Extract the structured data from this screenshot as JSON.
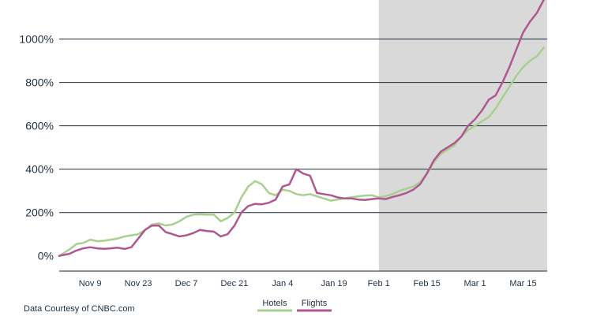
{
  "chart_data": {
    "type": "line",
    "source_note": "Data Courtesy of CNBC.com",
    "y_ticks": [
      "0%",
      "200%",
      "400%",
      "600%",
      "800%",
      "1000%"
    ],
    "y_tick_values": [
      0,
      200,
      400,
      600,
      800,
      1000
    ],
    "ylim": [
      -70,
      1180
    ],
    "x_tick_labels": [
      "Nov 9",
      "Nov 23",
      "Dec 7",
      "Dec 21",
      "Jan 4",
      "Jan 19",
      "Feb 1",
      "Feb 15",
      "Mar 1",
      "Mar 15"
    ],
    "x_tick_values": [
      9,
      23,
      37,
      51,
      65,
      80,
      93,
      107,
      121,
      135
    ],
    "xlim": [
      0,
      142
    ],
    "shaded_region": [
      93,
      142
    ],
    "grid": "horizontal",
    "legend_position": "bottom-center",
    "colors": {
      "Hotels": "#a9cf8f",
      "Flights": "#b0578e",
      "shade": "#d9d9d9"
    },
    "series": [
      {
        "name": "Hotels",
        "x": [
          0,
          3,
          5,
          7,
          9,
          11,
          13,
          15,
          17,
          19,
          21,
          23,
          25,
          27,
          29,
          31,
          33,
          35,
          37,
          39,
          41,
          43,
          45,
          47,
          49,
          51,
          53,
          55,
          57,
          59,
          61,
          63,
          65,
          67,
          69,
          71,
          73,
          75,
          77,
          79,
          81,
          83,
          85,
          87,
          89,
          91,
          93,
          95,
          97,
          99,
          101,
          103,
          105,
          107,
          109,
          111,
          113,
          115,
          117,
          119,
          121,
          123,
          125,
          127,
          129,
          131,
          133,
          135,
          137,
          139,
          141
        ],
        "y": [
          0,
          30,
          55,
          60,
          75,
          68,
          70,
          75,
          80,
          90,
          95,
          100,
          120,
          145,
          150,
          140,
          145,
          160,
          180,
          190,
          192,
          190,
          190,
          160,
          175,
          200,
          270,
          320,
          345,
          330,
          290,
          280,
          305,
          300,
          285,
          280,
          285,
          275,
          265,
          255,
          260,
          265,
          270,
          275,
          278,
          280,
          270,
          275,
          285,
          300,
          310,
          320,
          340,
          380,
          430,
          470,
          490,
          510,
          550,
          580,
          600,
          620,
          640,
          680,
          730,
          780,
          830,
          870,
          900,
          920,
          960
        ]
      },
      {
        "name": "Flights",
        "x": [
          0,
          3,
          5,
          7,
          9,
          11,
          13,
          15,
          17,
          19,
          21,
          23,
          25,
          27,
          29,
          31,
          33,
          35,
          37,
          39,
          41,
          43,
          45,
          47,
          49,
          51,
          53,
          55,
          57,
          59,
          61,
          63,
          65,
          67,
          69,
          71,
          73,
          75,
          77,
          79,
          81,
          83,
          85,
          87,
          89,
          91,
          93,
          95,
          97,
          99,
          101,
          103,
          105,
          107,
          109,
          111,
          113,
          115,
          117,
          119,
          121,
          123,
          125,
          127,
          129,
          131,
          133,
          135,
          137,
          139,
          141
        ],
        "y": [
          0,
          10,
          25,
          35,
          40,
          35,
          33,
          35,
          38,
          32,
          40,
          80,
          120,
          140,
          140,
          110,
          100,
          90,
          95,
          105,
          120,
          115,
          112,
          90,
          100,
          140,
          200,
          230,
          240,
          238,
          245,
          260,
          320,
          330,
          400,
          380,
          370,
          290,
          285,
          280,
          270,
          265,
          265,
          260,
          258,
          262,
          265,
          262,
          272,
          280,
          290,
          305,
          330,
          380,
          440,
          480,
          500,
          520,
          550,
          600,
          630,
          670,
          720,
          740,
          800,
          870,
          950,
          1030,
          1080,
          1120,
          1180
        ]
      }
    ]
  }
}
